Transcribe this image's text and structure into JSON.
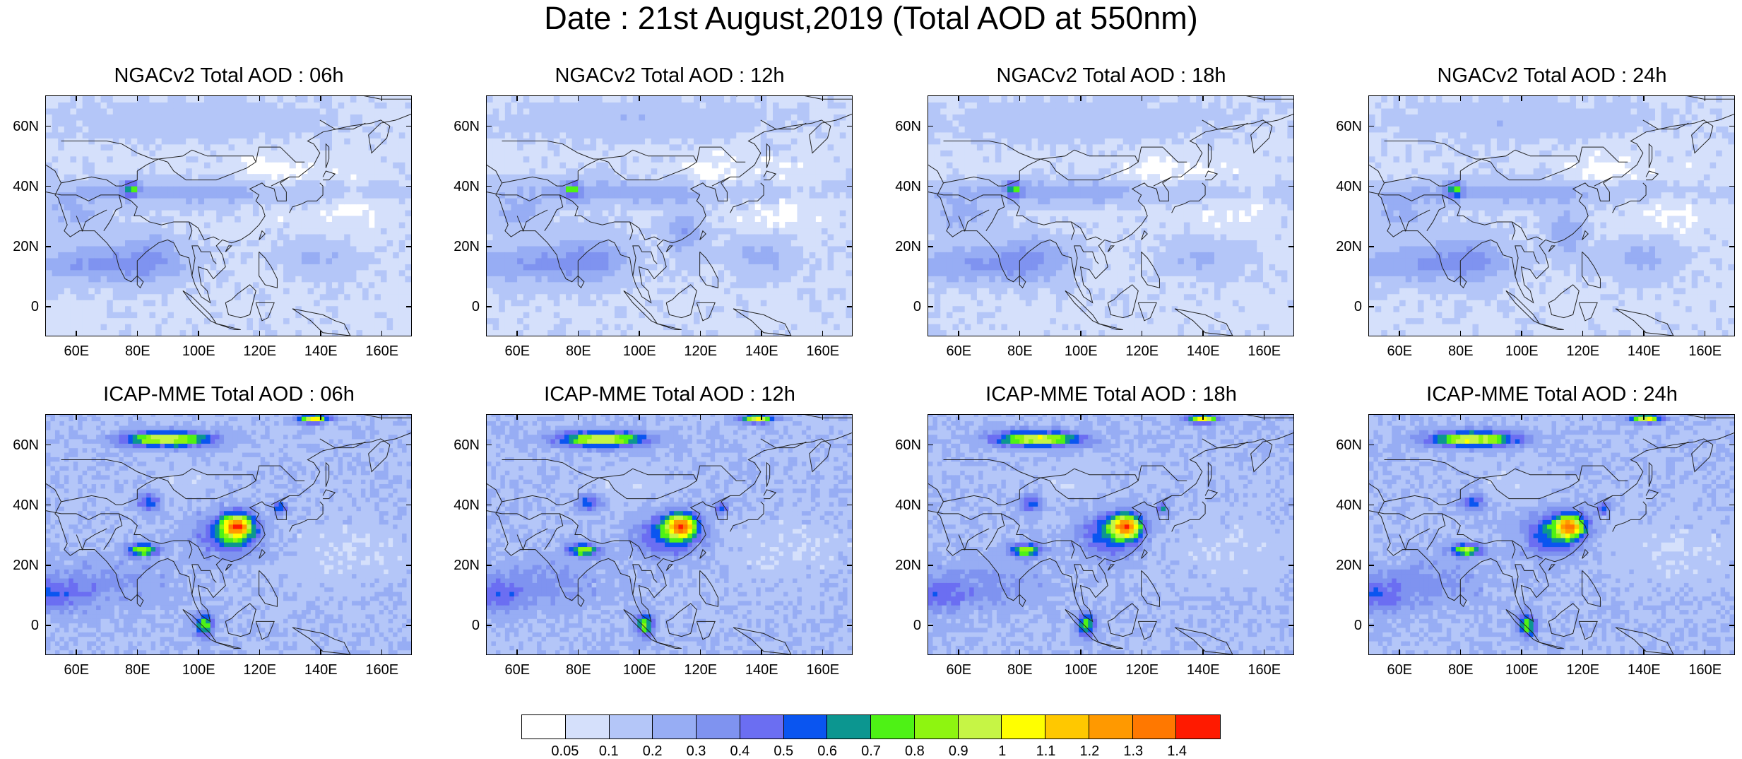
{
  "title": "Date : 21st August,2019 (Total AOD at 550nm)",
  "panels": [
    {
      "title": "NGACv2 Total AOD : 06h",
      "model": "NGACv2",
      "hour": "06h"
    },
    {
      "title": "NGACv2 Total AOD : 12h",
      "model": "NGACv2",
      "hour": "12h"
    },
    {
      "title": "NGACv2 Total AOD : 18h",
      "model": "NGACv2",
      "hour": "18h"
    },
    {
      "title": "NGACv2 Total AOD : 24h",
      "model": "NGACv2",
      "hour": "24h"
    },
    {
      "title": "ICAP-MME Total AOD : 06h",
      "model": "ICAP-MME",
      "hour": "06h"
    },
    {
      "title": "ICAP-MME Total AOD : 12h",
      "model": "ICAP-MME",
      "hour": "12h"
    },
    {
      "title": "ICAP-MME Total AOD : 18h",
      "model": "ICAP-MME",
      "hour": "18h"
    },
    {
      "title": "ICAP-MME Total AOD : 24h",
      "model": "ICAP-MME",
      "hour": "24h"
    }
  ],
  "axes": {
    "lat_labels": [
      "60N",
      "40N",
      "20N",
      "0"
    ],
    "lon_labels": [
      "60E",
      "80E",
      "100E",
      "120E",
      "140E",
      "160E"
    ]
  },
  "colorbar": {
    "labels": [
      "0.05",
      "0.1",
      "0.2",
      "0.3",
      "0.4",
      "0.5",
      "0.6",
      "0.7",
      "0.8",
      "0.9",
      "1",
      "1.1",
      "1.2",
      "1.3",
      "1.4"
    ],
    "colors": [
      "#ffffff",
      "#d5e0fb",
      "#b4c6f8",
      "#97adf4",
      "#7f93f0",
      "#6b6ef2",
      "#0a55f0",
      "#0c9690",
      "#4ef215",
      "#8ef510",
      "#c6f545",
      "#ffff00",
      "#ffc800",
      "#ff9900",
      "#ff7800",
      "#ff1a00"
    ]
  }
}
